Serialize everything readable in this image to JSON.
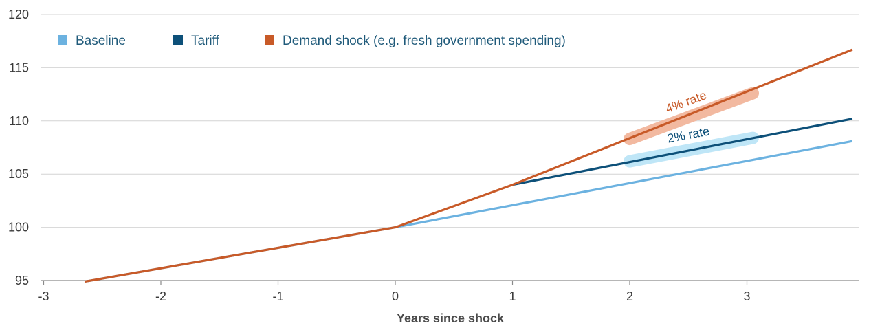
{
  "chart_data": {
    "type": "line",
    "title": "",
    "xlabel": "Years since shock",
    "ylabel": "",
    "xlim": [
      -3,
      3.95
    ],
    "ylim": [
      95,
      120
    ],
    "xticks": [
      -3,
      -2,
      -1,
      0,
      1,
      2,
      3
    ],
    "xtick_labels": [
      "-3",
      "-2",
      "-1",
      "0",
      "1",
      "2",
      "3"
    ],
    "yticks": [
      95,
      100,
      105,
      110,
      115,
      120
    ],
    "ytick_labels": [
      "95",
      "100",
      "105",
      "110",
      "115",
      "120"
    ],
    "grid": "horizontal",
    "legend_position": "top-left",
    "series": [
      {
        "name": "Baseline",
        "color": "#6cb2e0",
        "points": [
          [
            -2.65,
            94.9
          ],
          [
            0,
            100
          ],
          [
            3.9,
            108.1
          ]
        ]
      },
      {
        "name": "Tariff",
        "color": "#0d5079",
        "points": [
          [
            1,
            104
          ],
          [
            3.9,
            110.2
          ]
        ]
      },
      {
        "name": "Demand shock (e.g. fresh government spending)",
        "color": "#c85a28",
        "points": [
          [
            -2.65,
            94.9
          ],
          [
            0,
            100
          ],
          [
            1,
            104
          ],
          [
            3.9,
            116.7
          ]
        ]
      }
    ],
    "annotations": [
      {
        "text": "4% rate",
        "color": "#c85a28",
        "highlight_color": "#f2b9a0",
        "segment": [
          [
            2,
            108.3
          ],
          [
            3.05,
            112.6
          ]
        ]
      },
      {
        "text": "2% rate",
        "color": "#0d5079",
        "highlight_color": "#bfe6f7",
        "segment": [
          [
            2,
            106.2
          ],
          [
            3.05,
            108.4
          ]
        ]
      }
    ]
  }
}
